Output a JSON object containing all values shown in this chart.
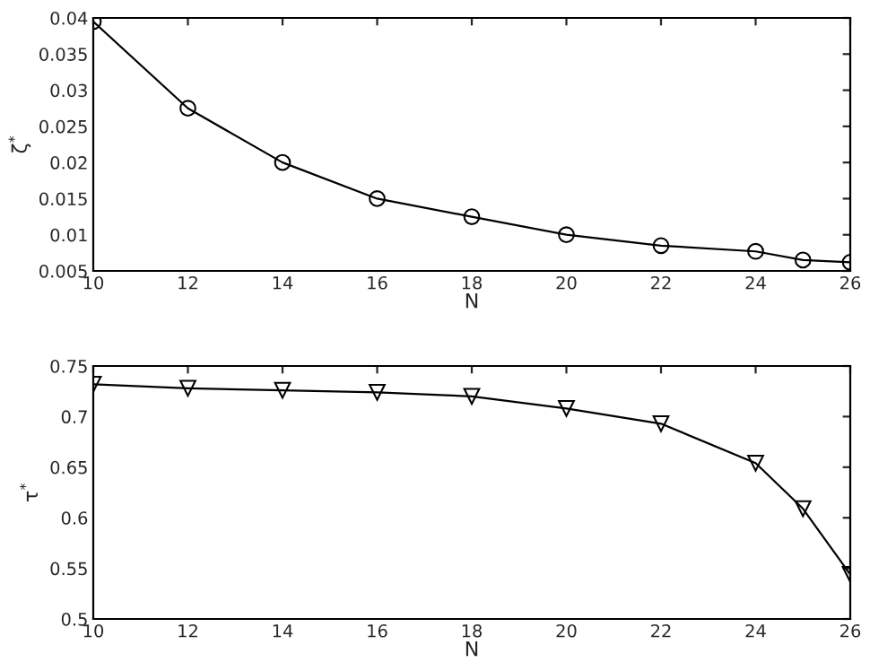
{
  "chart_data": [
    {
      "type": "line",
      "xlabel": "N",
      "ylabel": "ζ$^{*}$",
      "x": [
        10,
        12,
        14,
        16,
        18,
        20,
        22,
        24,
        25,
        26
      ],
      "series": [
        {
          "color": "#000000",
          "values": [
            0.0395,
            0.0275,
            0.02,
            0.015,
            0.0125,
            0.01,
            0.0085,
            0.0077,
            0.0065,
            0.0062
          ]
        }
      ],
      "marker": "circle",
      "line_style": "solid",
      "xlim": [
        10,
        26
      ],
      "xticks": [
        10,
        12,
        14,
        16,
        18,
        20,
        22,
        24,
        26
      ],
      "ylim": [
        0.005,
        0.04
      ],
      "yticks": [
        0.005,
        0.01,
        0.015,
        0.02,
        0.025,
        0.03,
        0.035,
        0.04
      ],
      "grid": false,
      "legend": false
    },
    {
      "type": "line",
      "xlabel": "N",
      "ylabel": "τ$^{*}$",
      "x": [
        10,
        12,
        14,
        16,
        18,
        20,
        22,
        24,
        25,
        26
      ],
      "series": [
        {
          "color": "#000000",
          "values": [
            0.732,
            0.728,
            0.726,
            0.724,
            0.72,
            0.708,
            0.693,
            0.654,
            0.609,
            0.544
          ]
        }
      ],
      "marker": "triangle",
      "line_style": "solid",
      "xlim": [
        10,
        26
      ],
      "xticks": [
        10,
        12,
        14,
        16,
        18,
        20,
        22,
        24,
        26
      ],
      "ylim": [
        0.5,
        0.75
      ],
      "yticks": [
        0.5,
        0.55,
        0.6,
        0.65,
        0.7,
        0.75
      ],
      "grid": false,
      "legend": false
    }
  ]
}
